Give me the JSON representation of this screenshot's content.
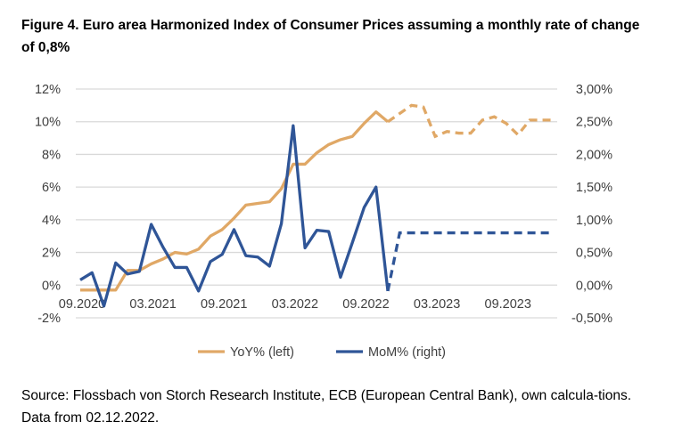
{
  "title": "Figure 4. Euro area Harmonized Index of Consumer Prices assuming a monthly rate of change of 0,8%",
  "source": "Source: Flossbach von Storch Research Institute, ECB (European Central Bank), own calcula-tions. Data from 02.12.2022.",
  "chart_data": {
    "type": "line",
    "x": [
      "09.2020",
      "10.2020",
      "11.2020",
      "12.2020",
      "01.2021",
      "02.2021",
      "03.2021",
      "04.2021",
      "05.2021",
      "06.2021",
      "07.2021",
      "08.2021",
      "09.2021",
      "10.2021",
      "11.2021",
      "12.2021",
      "01.2022",
      "02.2022",
      "03.2022",
      "04.2022",
      "05.2022",
      "06.2022",
      "07.2022",
      "08.2022",
      "09.2022",
      "10.2022",
      "11.2022",
      "12.2022",
      "01.2023",
      "02.2023",
      "03.2023",
      "04.2023",
      "05.2023",
      "06.2023",
      "07.2023",
      "08.2023",
      "09.2023",
      "10.2023",
      "11.2023",
      "12.2023",
      "01.2024"
    ],
    "x_tick_labels": [
      "09.2020",
      "03.2021",
      "09.2021",
      "03.2022",
      "09.2022",
      "03.2023",
      "09.2023"
    ],
    "y_left": {
      "ylim": [
        -2,
        12
      ],
      "ticks": [
        "-2%",
        "0%",
        "2%",
        "4%",
        "6%",
        "8%",
        "10%",
        "12%"
      ]
    },
    "y_right": {
      "ylim": [
        -0.5,
        3.0
      ],
      "ticks": [
        "-0,50%",
        "0,00%",
        "0,50%",
        "1,00%",
        "1,50%",
        "2,00%",
        "2,50%",
        "3,00%"
      ]
    },
    "grid": true,
    "legend": "bottom",
    "series": [
      {
        "name": "YoY% (left)",
        "axis": "left",
        "color": "#E0A866",
        "solid_until": "11.2022",
        "values": [
          -0.3,
          -0.3,
          -0.3,
          -0.3,
          0.9,
          0.9,
          1.3,
          1.6,
          2.0,
          1.9,
          2.2,
          3.0,
          3.4,
          4.1,
          4.9,
          5.0,
          5.1,
          5.9,
          7.4,
          7.4,
          8.1,
          8.6,
          8.9,
          9.1,
          9.9,
          10.6,
          10.0,
          10.5,
          11.0,
          10.9,
          9.1,
          9.4,
          9.3,
          9.3,
          10.1,
          10.3,
          9.9,
          9.2,
          10.1,
          10.1,
          10.1
        ]
      },
      {
        "name": "MoM% (right)",
        "axis": "right",
        "color": "#2F5597",
        "solid_until": "11.2022",
        "values": [
          0.08,
          0.19,
          -0.32,
          0.34,
          0.17,
          0.21,
          0.93,
          0.58,
          0.27,
          0.27,
          -0.09,
          0.36,
          0.47,
          0.85,
          0.45,
          0.43,
          0.29,
          0.94,
          2.44,
          0.57,
          0.84,
          0.82,
          0.12,
          0.65,
          1.19,
          1.5,
          -0.09,
          0.8,
          0.8,
          0.8,
          0.8,
          0.8,
          0.8,
          0.8,
          0.8,
          0.8,
          0.8,
          0.8,
          0.8,
          0.8,
          0.8
        ]
      }
    ]
  }
}
